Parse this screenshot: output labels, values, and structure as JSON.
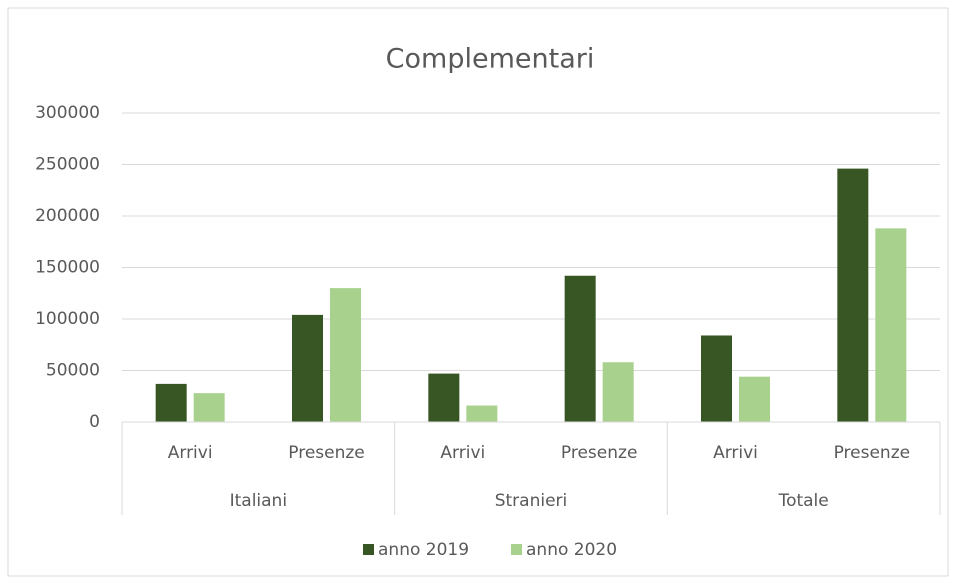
{
  "chart_data": {
    "type": "bar",
    "title": "Complementari",
    "categories": [
      "Arrivi",
      "Presenze",
      "Arrivi",
      "Presenze",
      "Arrivi",
      "Presenze"
    ],
    "category_groups": [
      "Italiani",
      "Stranieri",
      "Totale"
    ],
    "series": [
      {
        "name": "anno 2019",
        "color": "#375623",
        "values": [
          37000,
          104000,
          47000,
          142000,
          84000,
          246000
        ]
      },
      {
        "name": "anno 2020",
        "color": "#a9d18e",
        "values": [
          28000,
          130000,
          16000,
          58000,
          44000,
          188000
        ]
      }
    ],
    "ylim": [
      0,
      300000
    ],
    "yticks": [
      0,
      50000,
      100000,
      150000,
      200000,
      250000,
      300000
    ],
    "grid": true,
    "legend": "bottom"
  }
}
